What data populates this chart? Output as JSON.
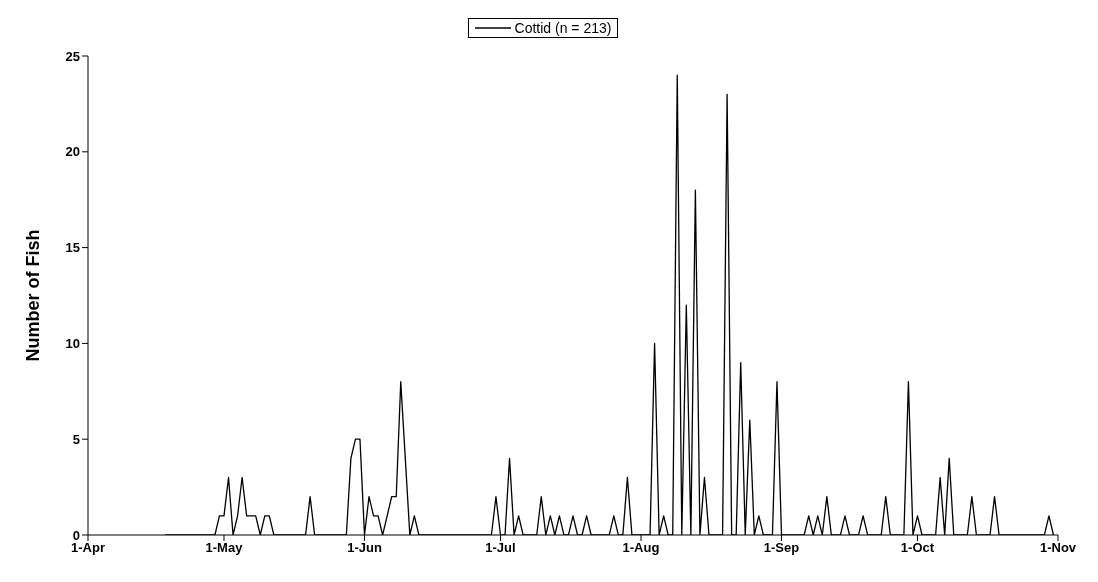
{
  "chart_data": {
    "type": "line",
    "ylabel": "Number of Fish",
    "x": [
      "--04-18",
      "--04-29",
      "--04-30",
      "--05-01",
      "--05-02",
      "--05-03",
      "--05-04",
      "--05-05",
      "--05-06",
      "--05-07",
      "--05-08",
      "--05-09",
      "--05-10",
      "--05-11",
      "--05-12",
      "--05-19",
      "--05-20",
      "--05-21",
      "--05-28",
      "--05-29",
      "--05-30",
      "--05-31",
      "--06-01",
      "--06-02",
      "--06-03",
      "--06-04",
      "--06-05",
      "--06-06",
      "--06-07",
      "--06-08",
      "--06-09",
      "--06-10",
      "--06-11",
      "--06-12",
      "--06-13",
      "--06-29",
      "--06-30",
      "--07-01",
      "--07-02",
      "--07-03",
      "--07-04",
      "--07-05",
      "--07-06",
      "--07-09",
      "--07-10",
      "--07-11",
      "--07-12",
      "--07-13",
      "--07-14",
      "--07-15",
      "--07-16",
      "--07-17",
      "--07-18",
      "--07-19",
      "--07-20",
      "--07-21",
      "--07-25",
      "--07-26",
      "--07-27",
      "--07-28",
      "--07-29",
      "--07-30",
      "--08-03",
      "--08-04",
      "--08-05",
      "--08-06",
      "--08-07",
      "--08-08",
      "--08-09",
      "--08-10",
      "--08-11",
      "--08-12",
      "--08-13",
      "--08-14",
      "--08-15",
      "--08-16",
      "--08-19",
      "--08-20",
      "--08-21",
      "--08-22",
      "--08-23",
      "--08-24",
      "--08-25",
      "--08-26",
      "--08-27",
      "--08-28",
      "--08-30",
      "--08-31",
      "--09-01",
      "--09-06",
      "--09-07",
      "--09-08",
      "--09-09",
      "--09-10",
      "--09-11",
      "--09-12",
      "--09-14",
      "--09-15",
      "--09-16",
      "--09-18",
      "--09-19",
      "--09-20",
      "--09-23",
      "--09-24",
      "--09-25",
      "--09-28",
      "--09-29",
      "--09-30",
      "--10-01",
      "--10-02",
      "--10-05",
      "--10-06",
      "--10-07",
      "--10-08",
      "--10-09",
      "--10-12",
      "--10-13",
      "--10-14",
      "--10-17",
      "--10-18",
      "--10-19",
      "--10-29",
      "--10-30",
      "--10-31"
    ],
    "series": [
      {
        "name": "Cottid (n = 213)",
        "color": "#000000",
        "values": [
          0,
          0,
          1,
          1,
          3,
          0,
          1,
          3,
          1,
          1,
          1,
          0,
          1,
          1,
          0,
          0,
          2,
          0,
          0,
          4,
          5,
          5,
          0,
          2,
          1,
          1,
          0,
          1,
          2,
          2,
          8,
          4,
          0,
          1,
          0,
          0,
          2,
          0,
          0,
          4,
          0,
          1,
          0,
          0,
          2,
          0,
          1,
          0,
          1,
          0,
          0,
          1,
          0,
          0,
          1,
          0,
          0,
          1,
          0,
          0,
          3,
          0,
          0,
          10,
          0,
          1,
          0,
          0,
          24,
          0,
          12,
          0,
          18,
          0,
          3,
          0,
          0,
          23,
          0,
          0,
          9,
          0,
          6,
          0,
          1,
          0,
          0,
          8,
          0,
          0,
          1,
          0,
          1,
          0,
          2,
          0,
          0,
          1,
          0,
          0,
          1,
          0,
          0,
          2,
          0,
          0,
          8,
          0,
          1,
          0,
          0,
          3,
          0,
          4,
          0,
          0,
          2,
          0,
          0,
          2,
          0,
          0,
          1,
          0
        ]
      }
    ],
    "xlim": [
      "--04-01",
      "--11-01"
    ],
    "xticks": [
      {
        "value": "--04-01",
        "label": "1-Apr"
      },
      {
        "value": "--05-01",
        "label": "1-May"
      },
      {
        "value": "--06-01",
        "label": "1-Jun"
      },
      {
        "value": "--07-01",
        "label": "1-Jul"
      },
      {
        "value": "--08-01",
        "label": "1-Aug"
      },
      {
        "value": "--09-01",
        "label": "1-Sep"
      },
      {
        "value": "--10-01",
        "label": "1-Oct"
      },
      {
        "value": "--11-01",
        "label": "1-Nov"
      }
    ],
    "ylim": [
      0,
      25
    ],
    "yticks": [
      0,
      5,
      10,
      15,
      20,
      25
    ],
    "legend": "top",
    "grid": false,
    "marker": "none",
    "line_style": "solid"
  }
}
